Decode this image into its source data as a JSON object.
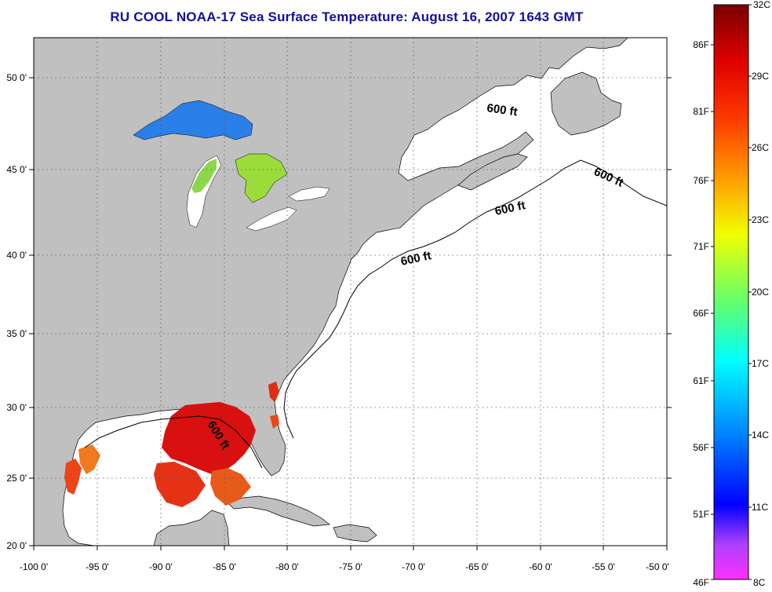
{
  "title": "RU COOL  NOAA-17  Sea Surface Temperature:  August 16, 2007 1643 GMT",
  "x_ticks": [
    "-100 0'",
    "-95 0'",
    "-90 0'",
    "-85 0'",
    "-80 0'",
    "-75 0'",
    "-70 0'",
    "-65 0'",
    "-60 0'",
    "-55 0'",
    "-50 0'"
  ],
  "y_ticks": [
    "20 0'",
    "25 0'",
    "30 0'",
    "35 0'",
    "40 0'",
    "45 0'",
    "50 0'"
  ],
  "colorbar": {
    "celsius": [
      "32C",
      "29C",
      "26C",
      "23C",
      "20C",
      "17C",
      "14C",
      "11C",
      "8C"
    ],
    "fahrenheit": [
      "86F",
      "81F",
      "76F",
      "71F",
      "66F",
      "61F",
      "56F",
      "51F",
      "46F"
    ]
  },
  "isobath_labels": [
    "600 ft",
    "600 ft",
    "600 ft",
    "600 ft",
    "600 ft"
  ],
  "colors": {
    "land": "#c0c0c0",
    "ocean": "#ffffff",
    "title": "#1010a0",
    "grid": "#555555"
  }
}
